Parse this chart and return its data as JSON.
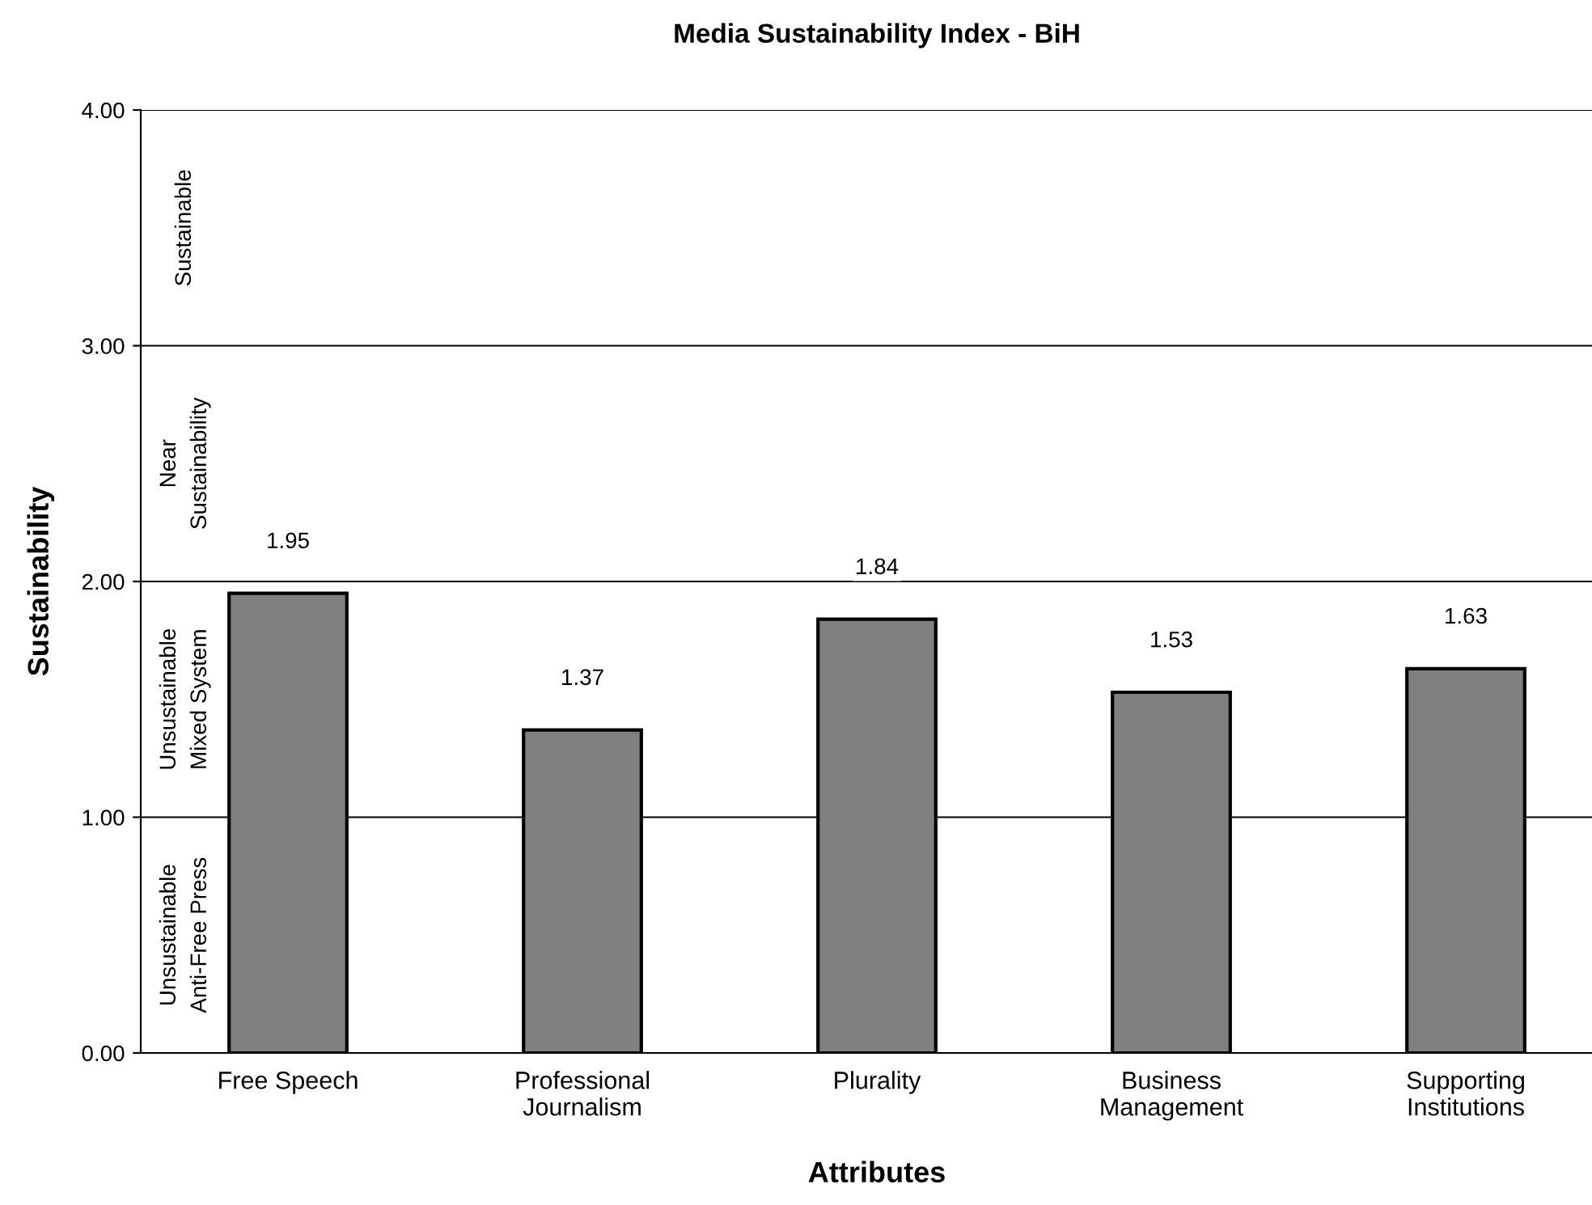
{
  "chart_data": {
    "type": "bar",
    "title": "Media Sustainability Index - BiH",
    "xlabel": "Attributes",
    "ylabel": "Sustainability",
    "categories": [
      "Free Speech",
      "Professional\nJournalism",
      "Plurality",
      "Business\nManagement",
      "Supporting\nInstitutions"
    ],
    "values": [
      1.95,
      1.37,
      1.84,
      1.53,
      1.63
    ],
    "color": "#808080",
    "data_labels": true,
    "ylim": [
      0,
      4
    ],
    "yticks": [
      {
        "value": 0,
        "label": "0.00"
      },
      {
        "value": 1,
        "label": "1.00"
      },
      {
        "value": 2,
        "label": "2.00"
      },
      {
        "value": 3,
        "label": "3.00"
      },
      {
        "value": 4,
        "label": "4.00"
      }
    ],
    "grid": "y",
    "legend": false,
    "annotations": [
      "Unsustainable\nAnti-Free Press",
      "Unsustainable\nMixed System",
      "Near\nSustainability",
      "Sustainable"
    ]
  }
}
